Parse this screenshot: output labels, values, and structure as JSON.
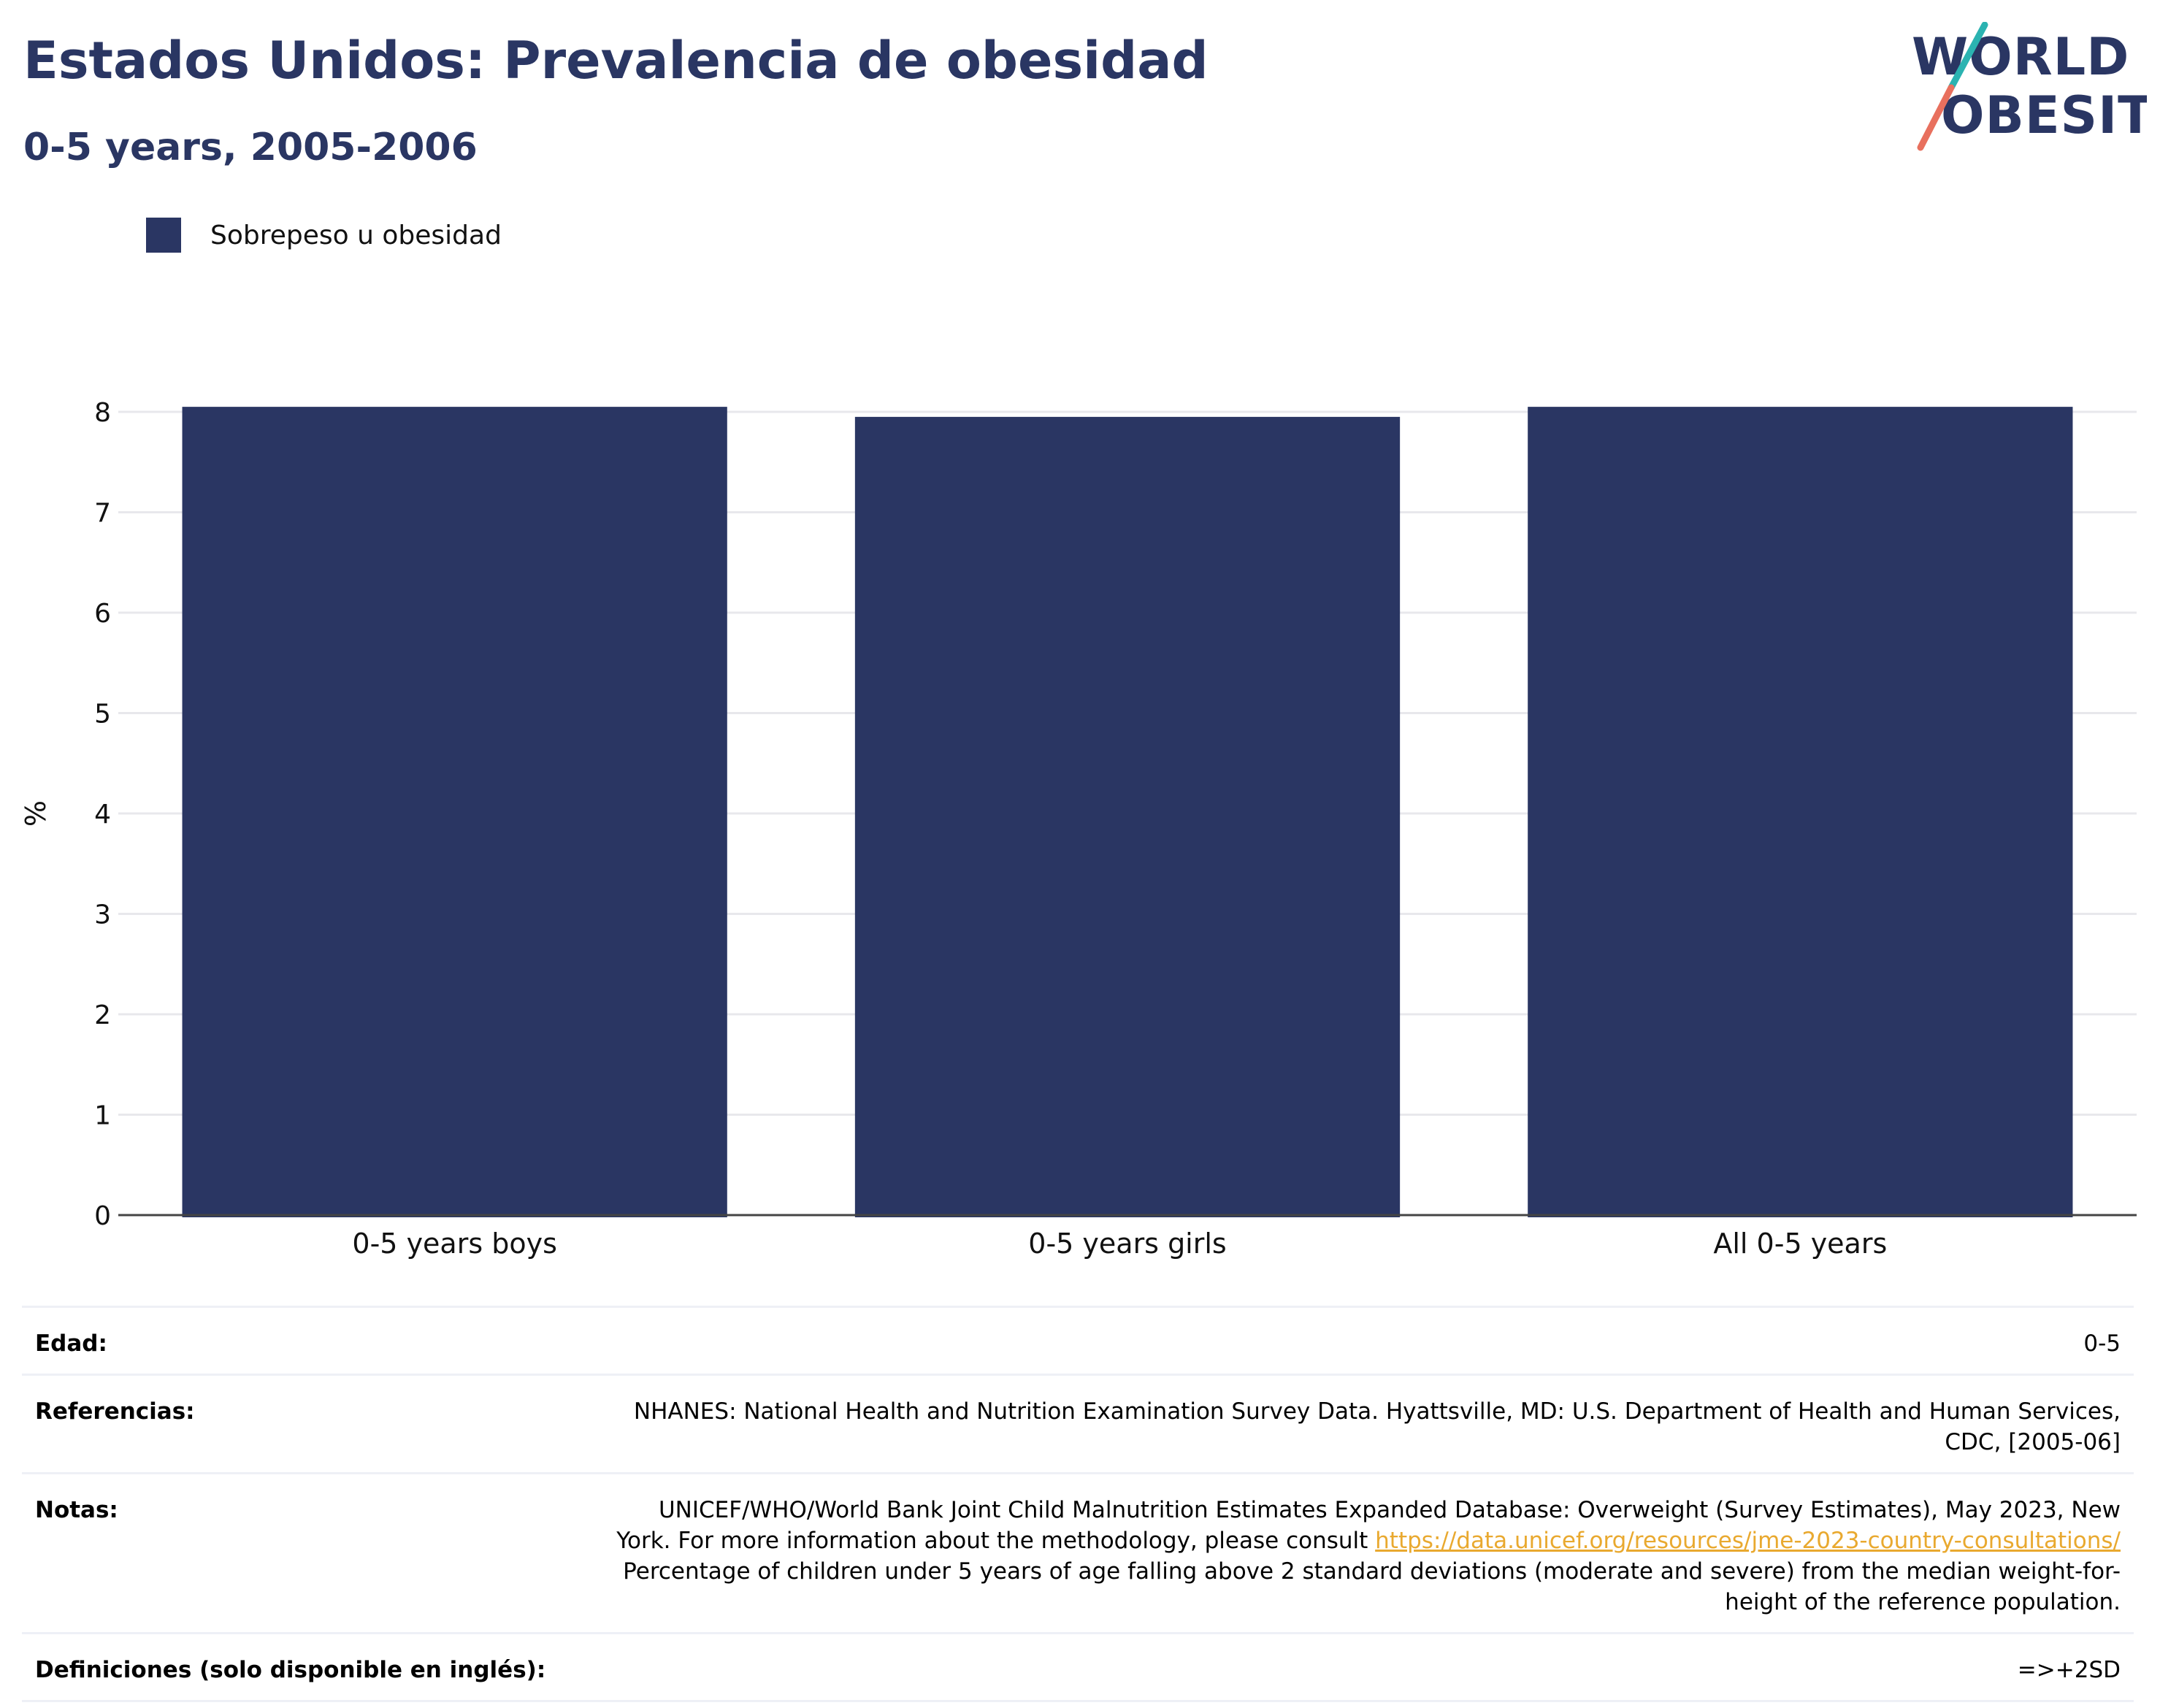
{
  "header": {
    "title": "Estados Unidos: Prevalencia de obesidad",
    "subtitle": "0-5 years, 2005-2006"
  },
  "logo": {
    "line1": "WORLD",
    "line2": "OBESITY"
  },
  "chart_data": {
    "type": "bar",
    "categories": [
      "0-5 years boys",
      "0-5 years girls",
      "All 0-5 years"
    ],
    "series": [
      {
        "name": "Sobrepeso u obesidad",
        "values": [
          8.05,
          7.95,
          8.05
        ],
        "color": "#2a3663"
      }
    ],
    "ylabel": "%",
    "ylim": [
      0,
      8
    ],
    "yticks": [
      0,
      1,
      2,
      3,
      4,
      5,
      6,
      7,
      8
    ],
    "grid": true,
    "legend": "top-left"
  },
  "info": {
    "rows": [
      {
        "label": "Edad:",
        "value": "0-5"
      },
      {
        "label": "Referencias:",
        "value": "NHANES: National Health and Nutrition Examination Survey Data. Hyattsville, MD: U.S. Department of Health and Human Services, CDC, [2005-06]"
      },
      {
        "label": "Notas:",
        "value_before": "UNICEF/WHO/World Bank Joint Child Malnutrition Estimates Expanded Database: Overweight (Survey Estimates), May 2023, New York. For more information about the methodology, please consult ",
        "link": "https://data.unicef.org/resources/jme-2023-country-consultations/",
        "value_after": " Percentage of children under 5 years of age falling above 2 standard deviations (moderate and severe) from the median weight-for-height of the reference population."
      },
      {
        "label": "Definiciones (solo disponible en inglés):",
        "value": "=>+2SD"
      }
    ]
  }
}
